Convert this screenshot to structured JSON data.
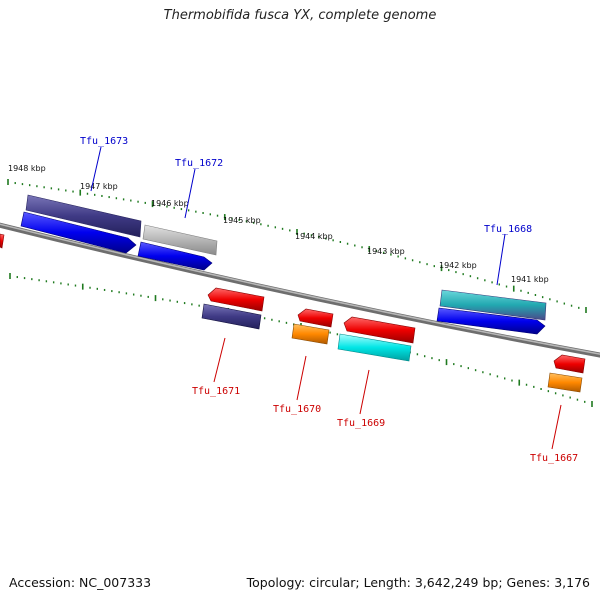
{
  "title": "Thermobifida fusca YX, complete genome",
  "footer": {
    "accession": "Accession: NC_007333",
    "topology": "Topology: circular; Length: 3,642,249 bp; Genes: 3,176"
  },
  "colors": {
    "backbone": "#808080",
    "ticks": "#1f7a1f",
    "forward_label": "#0000cc",
    "reverse_label": "#cc0000",
    "blue": "#0000ee",
    "navy": "#3f3a85",
    "gray": "#b5b5b5",
    "red": "#ee0000",
    "orange": "#ff8800",
    "cyan": "#00e5e5",
    "teal": "#22a8b0"
  },
  "scale": {
    "labels": [
      {
        "text": "1948 kbp",
        "kbp": 1948
      },
      {
        "text": "1947 kbp",
        "kbp": 1947
      },
      {
        "text": "1946 kbp",
        "kbp": 1946
      },
      {
        "text": "1945 kbp",
        "kbp": 1945
      },
      {
        "text": "1944 kbp",
        "kbp": 1944
      },
      {
        "text": "1943 kbp",
        "kbp": 1943
      },
      {
        "text": "1942 kbp",
        "kbp": 1942
      },
      {
        "text": "1941 kbp",
        "kbp": 1941
      }
    ]
  },
  "genes": {
    "forward": [
      {
        "label": "Tfu_1673"
      },
      {
        "label": "Tfu_1672"
      },
      {
        "label": "Tfu_1668"
      }
    ],
    "reverse": [
      {
        "label": "Tfu_1671"
      },
      {
        "label": "Tfu_1670"
      },
      {
        "label": "Tfu_1669"
      },
      {
        "label": "Tfu_1667"
      }
    ]
  }
}
